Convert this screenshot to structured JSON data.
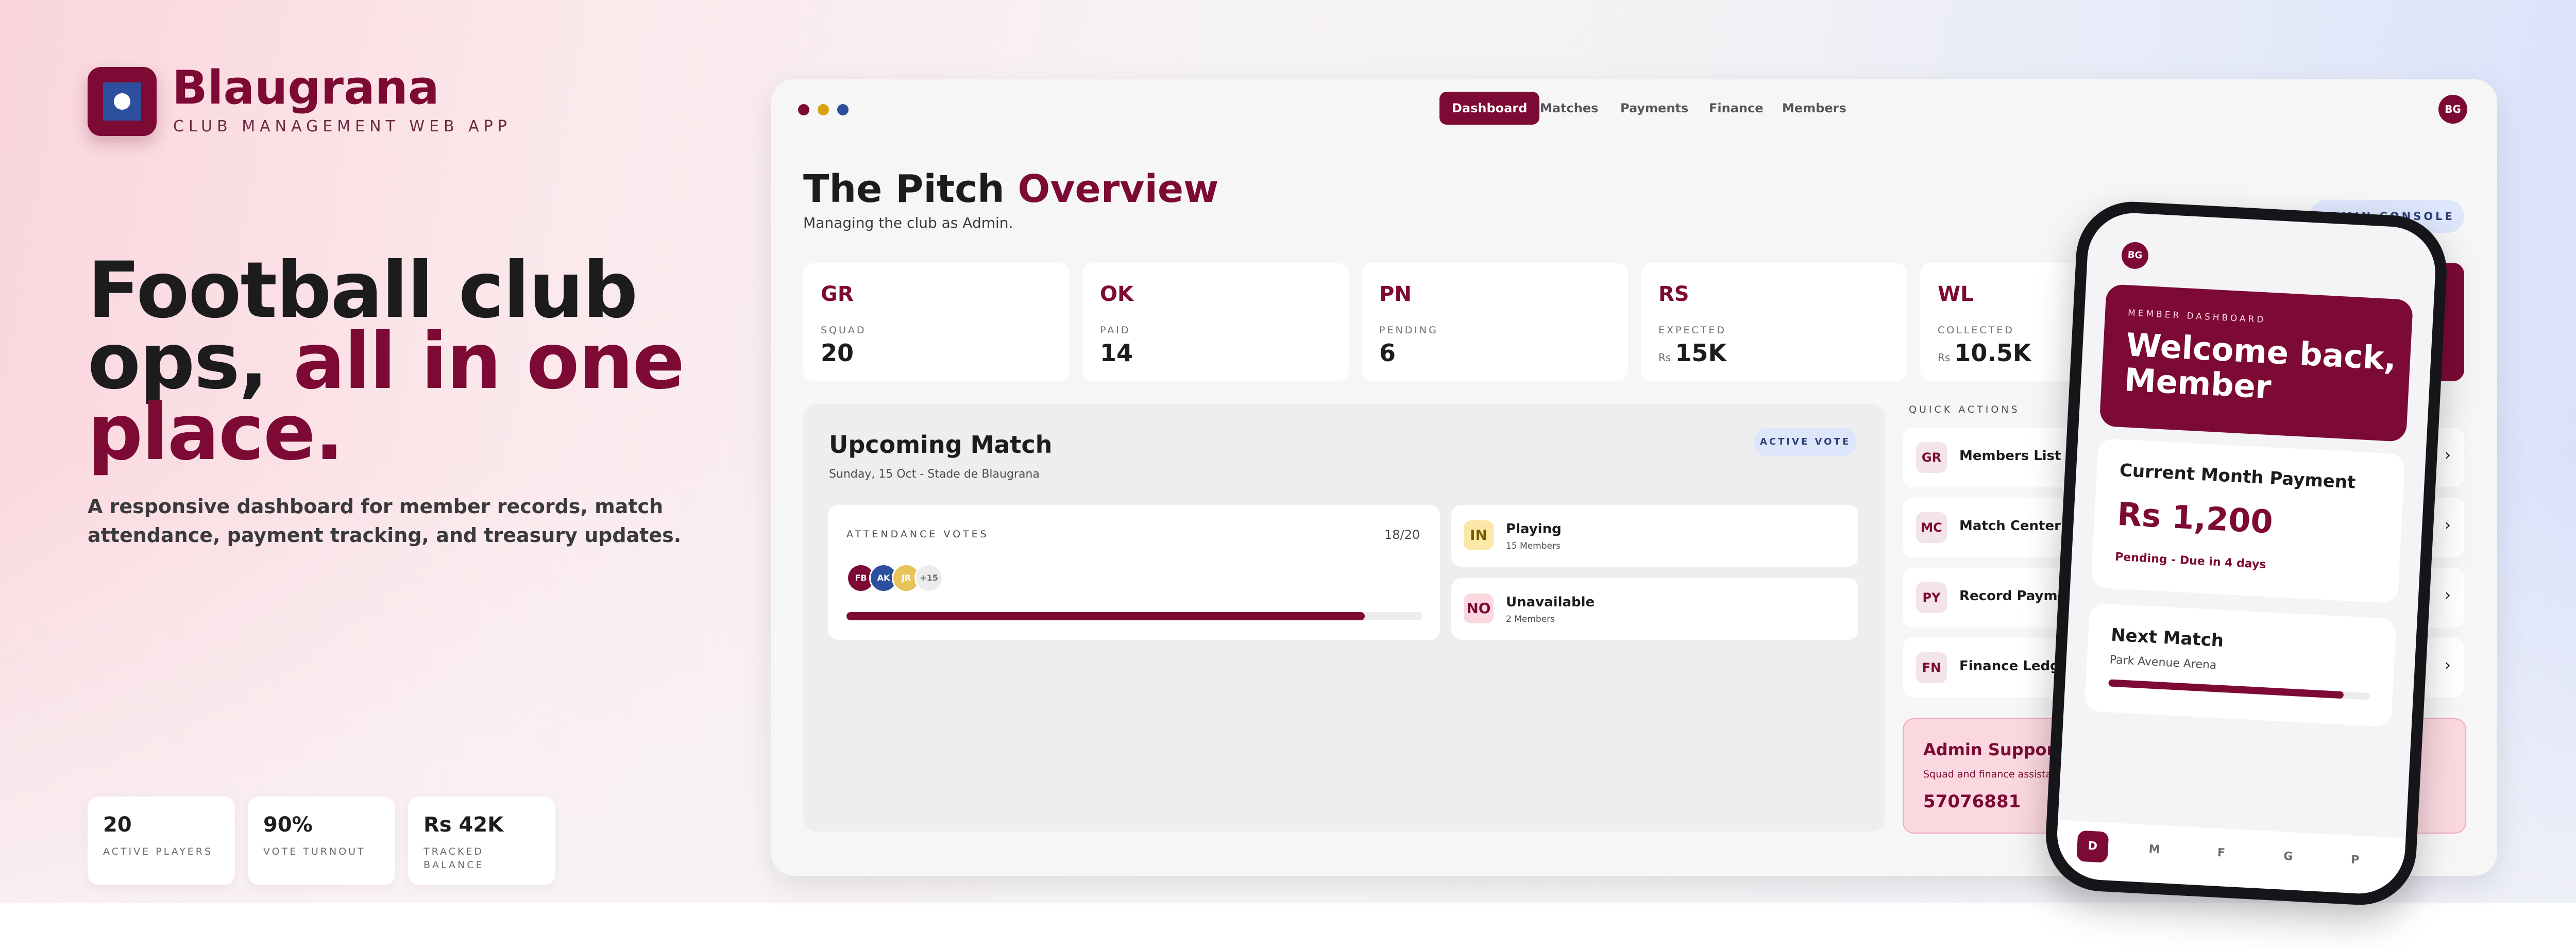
{
  "brand": {
    "name": "Blaugrana",
    "tagline": "CLUB MANAGEMENT WEB APP",
    "colors": {
      "primary": "#7d0a35",
      "secondary": "#2c4f9e"
    }
  },
  "hero": {
    "line1": "Football club",
    "line2_plain": "ops, ",
    "line2_accent": "all in one",
    "line3_accent": "place.",
    "subtitle": "A responsive dashboard for member records, match attendance, payment tracking, and treasury updates."
  },
  "stats": [
    {
      "value": "20",
      "label": "ACTIVE PLAYERS"
    },
    {
      "value": "90%",
      "label": "VOTE TURNOUT"
    },
    {
      "value": "Rs 42K",
      "label": "TRACKED BALANCE"
    }
  ],
  "window": {
    "nav": [
      "Dashboard",
      "Matches",
      "Payments",
      "Finance",
      "Members"
    ],
    "active_nav": "Dashboard",
    "avatar": "BG",
    "title_plain": "The Pitch ",
    "title_accent": "Overview",
    "subtitle": "Managing the club as Admin.",
    "admin_button": "ADMIN CONSOLE",
    "kpis": [
      {
        "code": "GR",
        "label": "SQUAD",
        "currency": "",
        "value": "20"
      },
      {
        "code": "OK",
        "label": "PAID",
        "currency": "",
        "value": "14"
      },
      {
        "code": "PN",
        "label": "PENDING",
        "currency": "",
        "value": "6"
      },
      {
        "code": "RS",
        "label": "EXPECTED",
        "currency": "Rs",
        "value": "15K"
      },
      {
        "code": "WL",
        "label": "COLLECTED",
        "currency": "Rs",
        "value": "10.5K"
      }
    ]
  },
  "match": {
    "title": "Upcoming Match",
    "subtitle": "Sunday, 15 Oct - Stade de Blaugrana",
    "status": "ACTIVE VOTE",
    "attendance_label": "ATTENDANCE VOTES",
    "attendance_count": "18/20",
    "attendance_fraction": 0.9,
    "voters": [
      "FB",
      "AK",
      "JR",
      "+15"
    ],
    "voter_colors": [
      "#7d0a35",
      "#2c4f9e",
      "#e8c35a",
      "#ececec"
    ],
    "responses": [
      {
        "badge": "IN",
        "title": "Playing",
        "subtitle": "15 Members",
        "badge_bg": "#fbe8a6",
        "badge_color": "#7a5a00"
      },
      {
        "badge": "NO",
        "title": "Unavailable",
        "subtitle": "2 Members",
        "badge_bg": "#fbd8df",
        "badge_color": "#7d0a35"
      }
    ]
  },
  "quick_actions": {
    "label": "QUICK ACTIONS",
    "items": [
      {
        "badge": "GR",
        "label": "Members List"
      },
      {
        "badge": "MC",
        "label": "Match Center"
      },
      {
        "badge": "PY",
        "label": "Record Payments"
      },
      {
        "badge": "FN",
        "label": "Finance Ledger"
      }
    ]
  },
  "support": {
    "title": "Admin Support",
    "subtitle": "Squad and finance assistan",
    "phone": "57076881"
  },
  "phone": {
    "avatar": "BG",
    "hero_label": "MEMBER DASHBOARD",
    "hero_title": "Welcome back, Member",
    "payment_title": "Current Month Payment",
    "payment_amount": "Rs 1,200",
    "payment_status": "Pending - Due in 4 days",
    "next_match_title": "Next Match",
    "next_match_venue": "Park Avenue Arena",
    "next_match_fraction": 0.9,
    "tabs": [
      "D",
      "M",
      "F",
      "G",
      "P"
    ],
    "active_tab": "D"
  }
}
